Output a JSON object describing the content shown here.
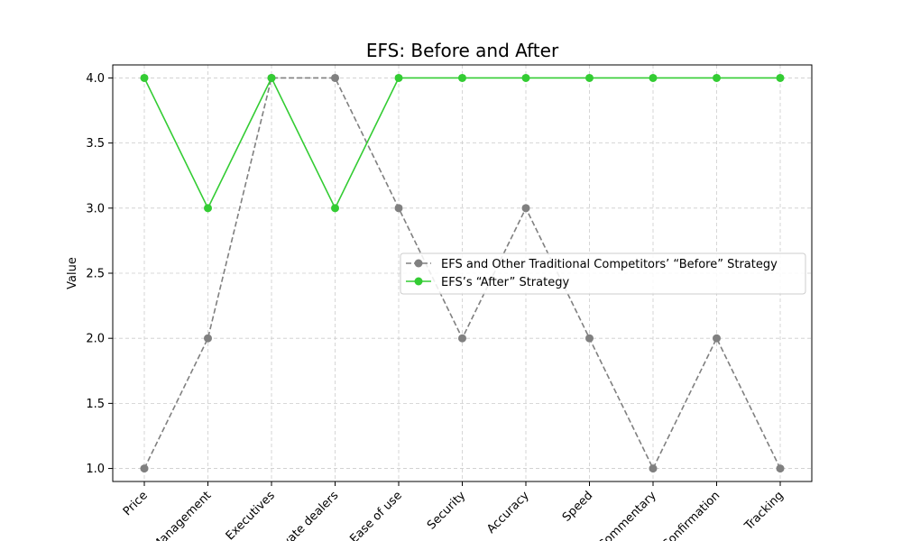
{
  "chart_data": {
    "type": "line",
    "title": "EFS: Before and After",
    "xlabel": "",
    "ylabel": "Value",
    "categories": [
      "Price",
      "Management",
      "Executives",
      "Private dealers",
      "Ease of use",
      "Security",
      "Accuracy",
      "Speed",
      "Commentary",
      "Confirmation",
      "Tracking"
    ],
    "ylim": [
      0.9,
      4.1
    ],
    "yticks": [
      "1.0",
      "1.5",
      "2.0",
      "2.5",
      "3.0",
      "3.5",
      "4.0"
    ],
    "grid": true,
    "legend_position": "center-right",
    "series": [
      {
        "name": "EFS and Other Traditional Competitors’ “Before” Strategy",
        "values": [
          1,
          2,
          4,
          4,
          3,
          2,
          3,
          2,
          1,
          2,
          1
        ],
        "color": "#808080",
        "style": "dashed"
      },
      {
        "name": "EFS’s “After” Strategy",
        "values": [
          4,
          3,
          4,
          3,
          4,
          4,
          4,
          4,
          4,
          4,
          4
        ],
        "color": "#33cc33",
        "style": "solid"
      }
    ]
  }
}
